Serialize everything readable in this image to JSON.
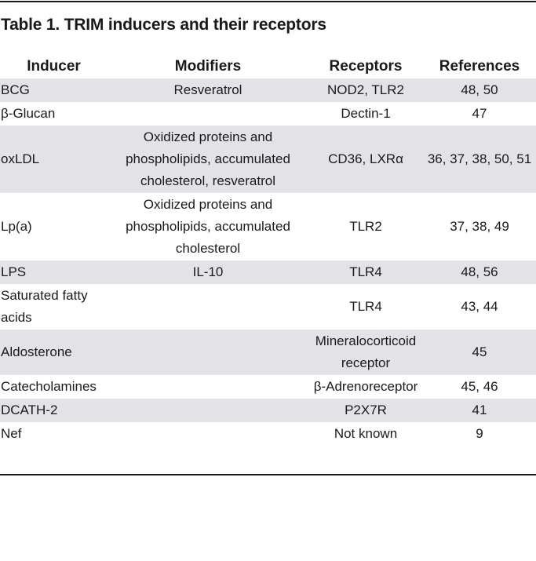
{
  "title": "Table 1. TRIM inducers and their receptors",
  "columns": [
    "Inducer",
    "Modifiers",
    "Receptors",
    "References"
  ],
  "rows": [
    {
      "inducer": "BCG",
      "modifiers": "Resveratrol",
      "receptors": "NOD2, TLR2",
      "references": "48, 50"
    },
    {
      "inducer": "β-Glucan",
      "modifiers": "",
      "receptors": "Dectin-1",
      "references": "47"
    },
    {
      "inducer": "oxLDL",
      "modifiers": "Oxidized proteins and phospholipids, accumulated cholesterol, resveratrol",
      "receptors": "CD36, LXRα",
      "references": "36, 37, 38, 50, 51"
    },
    {
      "inducer": "Lp(a)",
      "modifiers": "Oxidized proteins and phospholipids, accumulated cholesterol",
      "receptors": "TLR2",
      "references": "37, 38, 49"
    },
    {
      "inducer": "LPS",
      "modifiers": "IL-10",
      "receptors": "TLR4",
      "references": "48, 56"
    },
    {
      "inducer": "Saturated fatty acids",
      "modifiers": "",
      "receptors": "TLR4",
      "references": "43, 44"
    },
    {
      "inducer": "Aldosterone",
      "modifiers": "",
      "receptors": "Mineralocorticoid receptor",
      "references": "45"
    },
    {
      "inducer": "Catecholamines",
      "modifiers": "",
      "receptors": "β-Adrenoreceptor",
      "references": "45, 46"
    },
    {
      "inducer": "DCATH-2",
      "modifiers": "",
      "receptors": "P2X7R",
      "references": "41"
    },
    {
      "inducer": "Nef",
      "modifiers": "",
      "receptors": "Not known",
      "references": "9"
    }
  ],
  "colors": {
    "row_shade": "#e3e3e7",
    "rule": "#1a1a1a",
    "text": "#1a1a1a"
  }
}
